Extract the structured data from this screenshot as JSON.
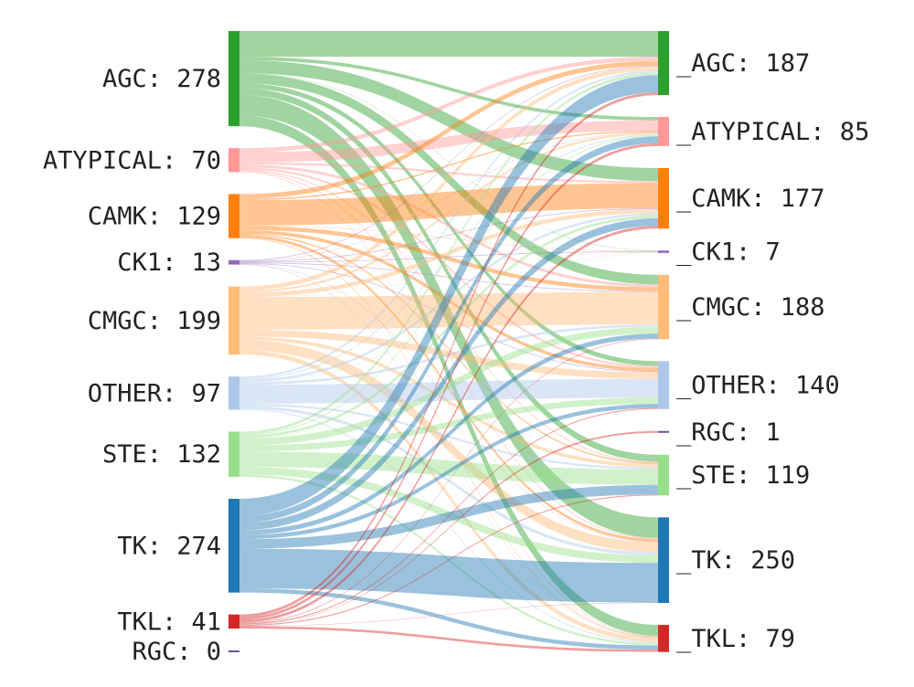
{
  "chart_data": {
    "type": "sankey",
    "source_nodes": [
      {
        "name": "AGC",
        "value": 278,
        "label": "AGC: 278",
        "color": "#2ca02c"
      },
      {
        "name": "ATYPICAL",
        "value": 70,
        "label": "ATYPICAL: 70",
        "color": "#ff9896"
      },
      {
        "name": "CAMK",
        "value": 129,
        "label": "CAMK: 129",
        "color": "#ff7f0e"
      },
      {
        "name": "CK1",
        "value": 13,
        "label": "CK1: 13",
        "color": "#9467bd"
      },
      {
        "name": "CMGC",
        "value": 199,
        "label": "CMGC: 199",
        "color": "#ffbb78"
      },
      {
        "name": "OTHER",
        "value": 97,
        "label": "OTHER: 97",
        "color": "#aec7e8"
      },
      {
        "name": "STE",
        "value": 132,
        "label": "STE: 132",
        "color": "#98df8a"
      },
      {
        "name": "TK",
        "value": 274,
        "label": "TK: 274",
        "color": "#1f77b4"
      },
      {
        "name": "TKL",
        "value": 41,
        "label": "TKL: 41",
        "color": "#d62728"
      },
      {
        "name": "RGC",
        "value": 0,
        "label": "RGC: 0",
        "color": "#6a51a3"
      }
    ],
    "target_nodes": [
      {
        "name": "_AGC",
        "value": 187,
        "label": "_AGC: 187",
        "color": "#2ca02c"
      },
      {
        "name": "_ATYPICAL",
        "value": 85,
        "label": "_ATYPICAL: 85",
        "color": "#ff9896"
      },
      {
        "name": "_CAMK",
        "value": 177,
        "label": "_CAMK: 177",
        "color": "#ff7f0e"
      },
      {
        "name": "_CK1",
        "value": 7,
        "label": "_CK1: 7",
        "color": "#9467bd"
      },
      {
        "name": "_CMGC",
        "value": 188,
        "label": "_CMGC: 188",
        "color": "#ffbb78"
      },
      {
        "name": "_OTHER",
        "value": 140,
        "label": "_OTHER: 140",
        "color": "#aec7e8"
      },
      {
        "name": "_RGC",
        "value": 1,
        "label": "_RGC: 1",
        "color": "#6a51a3"
      },
      {
        "name": "_STE",
        "value": 119,
        "label": "_STE: 119",
        "color": "#98df8a"
      },
      {
        "name": "_TK",
        "value": 250,
        "label": "_TK: 250",
        "color": "#1f77b4"
      },
      {
        "name": "_TKL",
        "value": 79,
        "label": "_TKL: 79",
        "color": "#d62728"
      }
    ],
    "links": [
      {
        "source": "AGC",
        "target": "_AGC",
        "value": 75
      },
      {
        "source": "AGC",
        "target": "_ATYPICAL",
        "value": 10
      },
      {
        "source": "AGC",
        "target": "_CAMK",
        "value": 38
      },
      {
        "source": "AGC",
        "target": "_CK1",
        "value": 1
      },
      {
        "source": "AGC",
        "target": "_CMGC",
        "value": 28
      },
      {
        "source": "AGC",
        "target": "_OTHER",
        "value": 14
      },
      {
        "source": "AGC",
        "target": "_STE",
        "value": 20
      },
      {
        "source": "AGC",
        "target": "_TK",
        "value": 60
      },
      {
        "source": "AGC",
        "target": "_TKL",
        "value": 32
      },
      {
        "source": "ATYPICAL",
        "target": "_AGC",
        "value": 12
      },
      {
        "source": "ATYPICAL",
        "target": "_ATYPICAL",
        "value": 30
      },
      {
        "source": "ATYPICAL",
        "target": "_CAMK",
        "value": 6
      },
      {
        "source": "ATYPICAL",
        "target": "_CMGC",
        "value": 8
      },
      {
        "source": "ATYPICAL",
        "target": "_OTHER",
        "value": 6
      },
      {
        "source": "ATYPICAL",
        "target": "_STE",
        "value": 3
      },
      {
        "source": "ATYPICAL",
        "target": "_TK",
        "value": 3
      },
      {
        "source": "ATYPICAL",
        "target": "_TKL",
        "value": 2
      },
      {
        "source": "CAMK",
        "target": "_AGC",
        "value": 14
      },
      {
        "source": "CAMK",
        "target": "_ATYPICAL",
        "value": 4
      },
      {
        "source": "CAMK",
        "target": "_CAMK",
        "value": 74
      },
      {
        "source": "CAMK",
        "target": "_CK1",
        "value": 1
      },
      {
        "source": "CAMK",
        "target": "_CMGC",
        "value": 12
      },
      {
        "source": "CAMK",
        "target": "_OTHER",
        "value": 10
      },
      {
        "source": "CAMK",
        "target": "_STE",
        "value": 4
      },
      {
        "source": "CAMK",
        "target": "_TK",
        "value": 8
      },
      {
        "source": "CAMK",
        "target": "_TKL",
        "value": 2
      },
      {
        "source": "CK1",
        "target": "_AGC",
        "value": 2
      },
      {
        "source": "CK1",
        "target": "_ATYPICAL",
        "value": 1
      },
      {
        "source": "CK1",
        "target": "_CAMK",
        "value": 2
      },
      {
        "source": "CK1",
        "target": "_CK1",
        "value": 2
      },
      {
        "source": "CK1",
        "target": "_CMGC",
        "value": 2
      },
      {
        "source": "CK1",
        "target": "_OTHER",
        "value": 2
      },
      {
        "source": "CK1",
        "target": "_TK",
        "value": 1
      },
      {
        "source": "CK1",
        "target": "_TKL",
        "value": 1
      },
      {
        "source": "CMGC",
        "target": "_AGC",
        "value": 12
      },
      {
        "source": "CMGC",
        "target": "_ATYPICAL",
        "value": 6
      },
      {
        "source": "CMGC",
        "target": "_CAMK",
        "value": 12
      },
      {
        "source": "CMGC",
        "target": "_CK1",
        "value": 1
      },
      {
        "source": "CMGC",
        "target": "_CMGC",
        "value": 95
      },
      {
        "source": "CMGC",
        "target": "_OTHER",
        "value": 20
      },
      {
        "source": "CMGC",
        "target": "_STE",
        "value": 10
      },
      {
        "source": "CMGC",
        "target": "_TK",
        "value": 30
      },
      {
        "source": "CMGC",
        "target": "_TKL",
        "value": 13
      },
      {
        "source": "OTHER",
        "target": "_AGC",
        "value": 6
      },
      {
        "source": "OTHER",
        "target": "_ATYPICAL",
        "value": 3
      },
      {
        "source": "OTHER",
        "target": "_CAMK",
        "value": 7
      },
      {
        "source": "OTHER",
        "target": "_CK1",
        "value": 1
      },
      {
        "source": "OTHER",
        "target": "_CMGC",
        "value": 7
      },
      {
        "source": "OTHER",
        "target": "_OTHER",
        "value": 55
      },
      {
        "source": "OTHER",
        "target": "_STE",
        "value": 6
      },
      {
        "source": "OTHER",
        "target": "_TK",
        "value": 9
      },
      {
        "source": "OTHER",
        "target": "_TKL",
        "value": 3
      },
      {
        "source": "STE",
        "target": "_AGC",
        "value": 8
      },
      {
        "source": "STE",
        "target": "_ATYPICAL",
        "value": 3
      },
      {
        "source": "STE",
        "target": "_CAMK",
        "value": 8
      },
      {
        "source": "STE",
        "target": "_CK1",
        "value": 1
      },
      {
        "source": "STE",
        "target": "_CMGC",
        "value": 20
      },
      {
        "source": "STE",
        "target": "_OTHER",
        "value": 18
      },
      {
        "source": "STE",
        "target": "_STE",
        "value": 45
      },
      {
        "source": "STE",
        "target": "_TK",
        "value": 22
      },
      {
        "source": "STE",
        "target": "_TKL",
        "value": 7
      },
      {
        "source": "TK",
        "target": "_AGC",
        "value": 50
      },
      {
        "source": "TK",
        "target": "_ATYPICAL",
        "value": 20
      },
      {
        "source": "TK",
        "target": "_CAMK",
        "value": 22
      },
      {
        "source": "TK",
        "target": "_CMGC",
        "value": 14
      },
      {
        "source": "TK",
        "target": "_OTHER",
        "value": 12
      },
      {
        "source": "TK",
        "target": "_STE",
        "value": 28
      },
      {
        "source": "TK",
        "target": "_TK",
        "value": 116
      },
      {
        "source": "TK",
        "target": "_TKL",
        "value": 12
      },
      {
        "source": "TKL",
        "target": "_AGC",
        "value": 8
      },
      {
        "source": "TKL",
        "target": "_ATYPICAL",
        "value": 8
      },
      {
        "source": "TKL",
        "target": "_CAMK",
        "value": 8
      },
      {
        "source": "TKL",
        "target": "_CMGC",
        "value": 2
      },
      {
        "source": "TKL",
        "target": "_OTHER",
        "value": 3
      },
      {
        "source": "TKL",
        "target": "_RGC",
        "value": 1
      },
      {
        "source": "TKL",
        "target": "_STE",
        "value": 3
      },
      {
        "source": "TKL",
        "target": "_TK",
        "value": 1
      },
      {
        "source": "TKL",
        "target": "_TKL",
        "value": 7
      }
    ]
  }
}
